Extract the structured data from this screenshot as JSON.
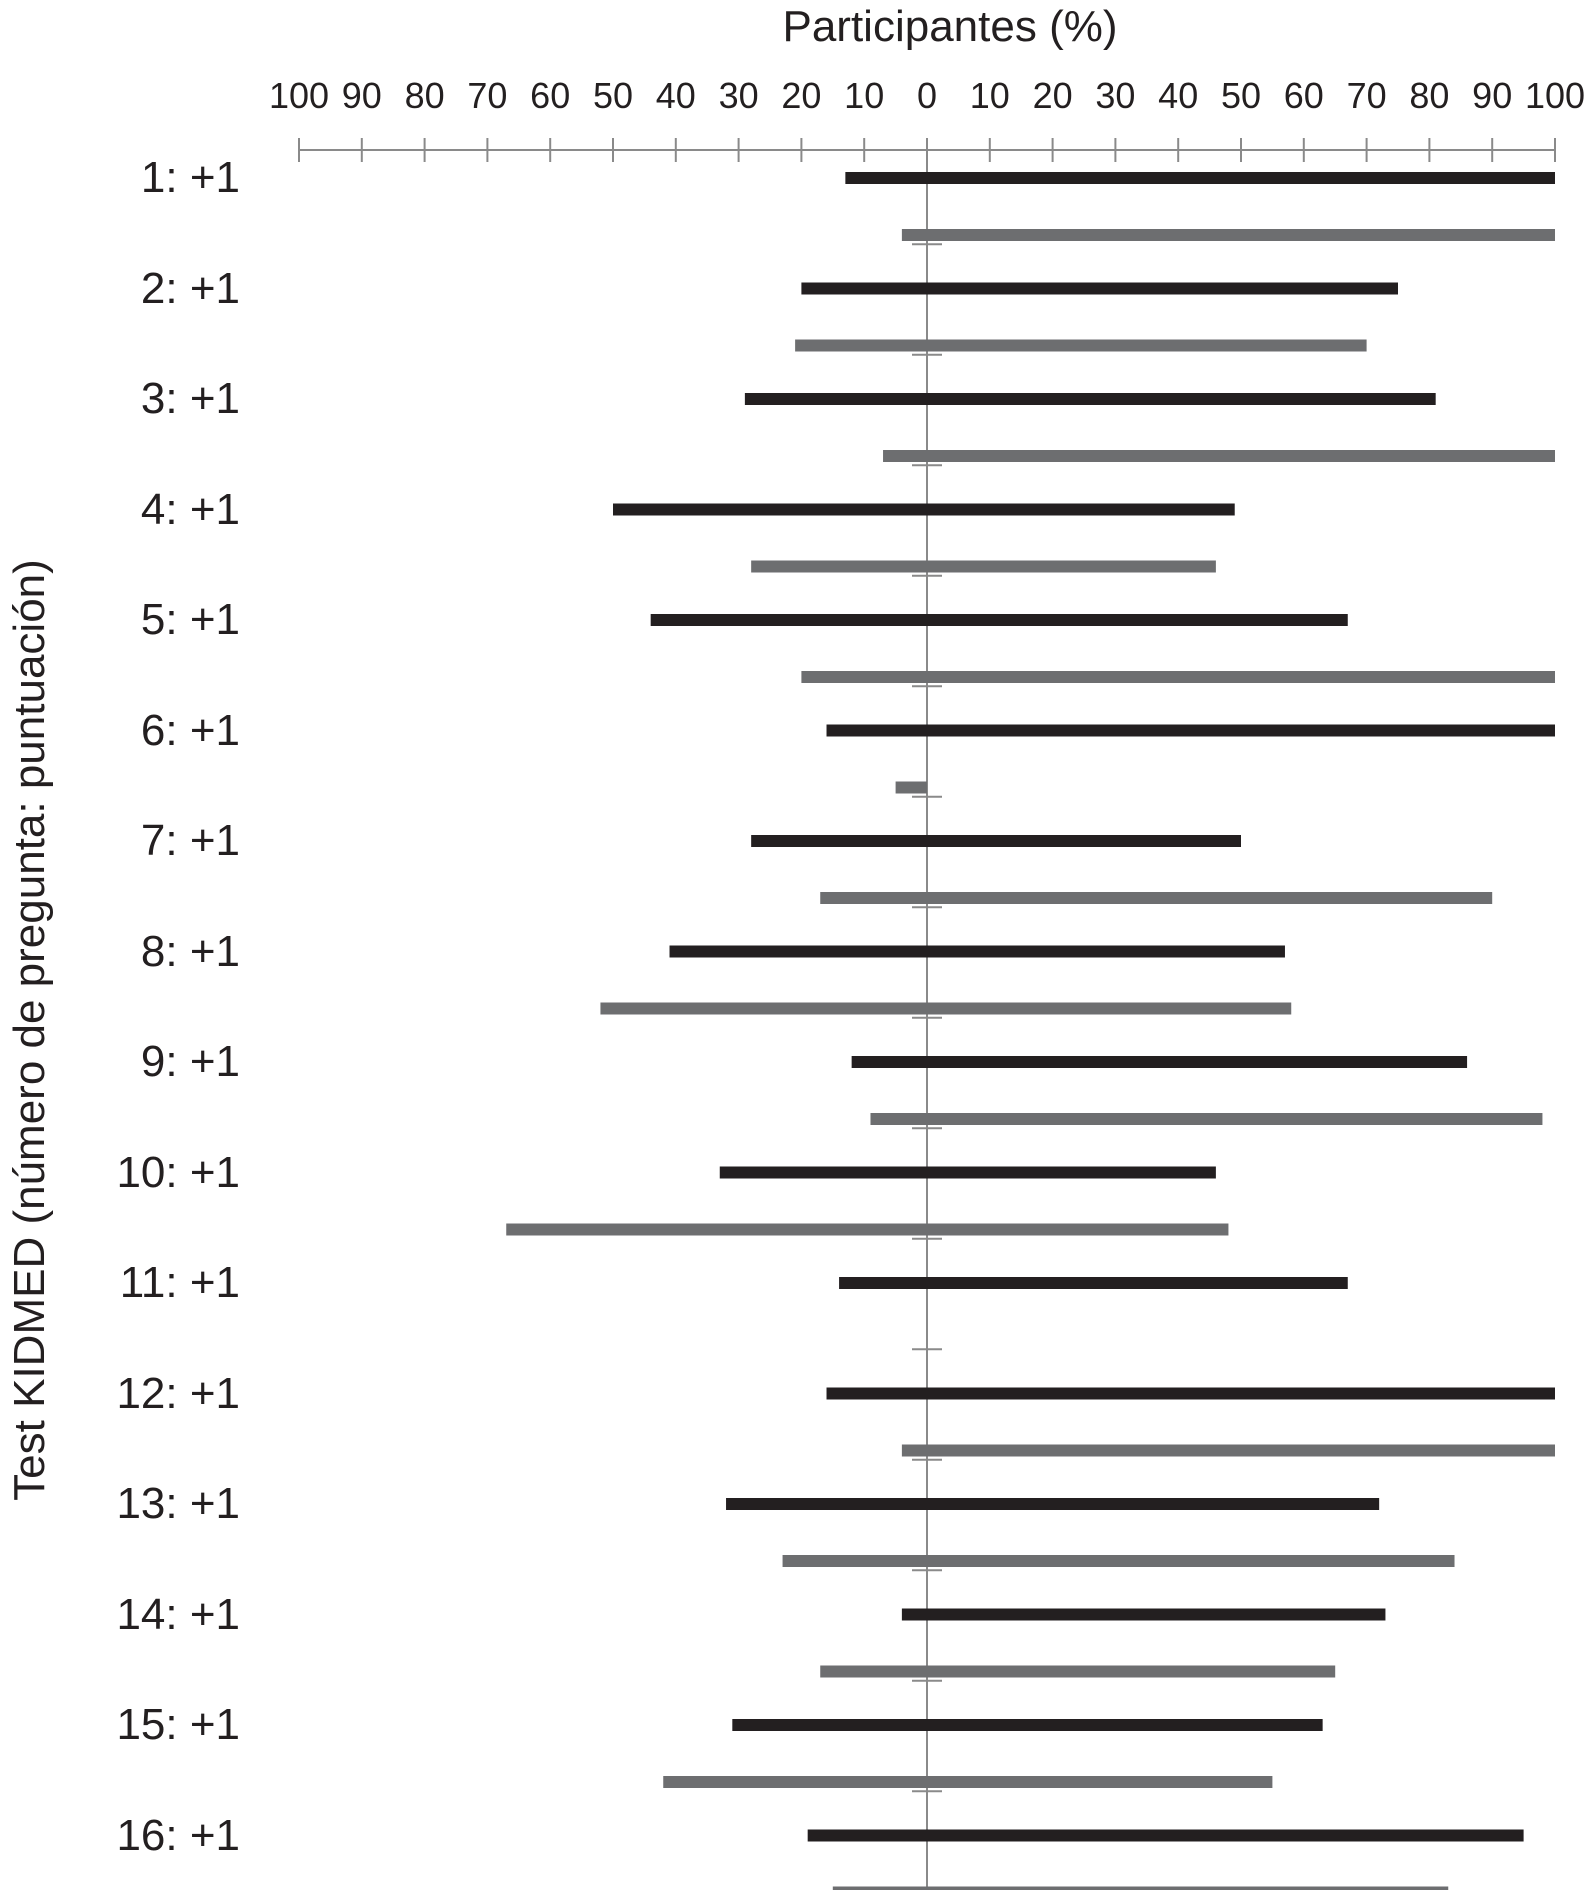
{
  "chart_data": {
    "type": "bar",
    "title": "Participantes (%)",
    "ylabel": "Test KIDMED (número de pregunta: puntuación)",
    "xlim": [
      -100,
      100
    ],
    "x_ticks": [
      100,
      90,
      80,
      70,
      60,
      50,
      40,
      30,
      20,
      10,
      0,
      10,
      20,
      30,
      40,
      50,
      60,
      70,
      80,
      90,
      100
    ],
    "colors": {
      "series_1": "#231f20",
      "series_2": "#6d6e70",
      "axis": "#8a8a8a"
    },
    "categories": [
      "1: +1",
      "2: +1",
      "3: +1",
      "4: +1",
      "5: +1",
      "6: +1",
      "7: +1",
      "8: +1",
      "9: +1",
      "10: +1",
      "11: +1",
      "12: +1",
      "13: +1",
      "14: +1",
      "15: +1",
      "16: +1"
    ],
    "series": [
      {
        "color": "#231f20",
        "values": [
          [
            -13,
            100
          ],
          [
            -20,
            75
          ],
          [
            -29,
            81
          ],
          [
            -50,
            49
          ],
          [
            -44,
            67
          ],
          [
            -16,
            100
          ],
          [
            -28,
            50
          ],
          [
            -41,
            57
          ],
          [
            -12,
            86
          ],
          [
            -33,
            46
          ],
          [
            -14,
            67
          ],
          [
            -16,
            100
          ],
          [
            -32,
            72
          ],
          [
            -4,
            73
          ],
          [
            -31,
            63
          ],
          [
            -19,
            95
          ]
        ]
      },
      {
        "color": "#6d6e70",
        "values": [
          [
            -4,
            100
          ],
          [
            -21,
            70
          ],
          [
            -7,
            100
          ],
          [
            -28,
            46
          ],
          [
            -20,
            100
          ],
          [
            -5,
            0
          ],
          [
            -17,
            90
          ],
          [
            -52,
            58
          ],
          [
            -9,
            98
          ],
          [
            -67,
            48
          ],
          null,
          [
            -4,
            100
          ],
          [
            -23,
            84
          ],
          [
            -17,
            65
          ],
          [
            -42,
            55
          ],
          [
            -15,
            83
          ]
        ]
      }
    ]
  }
}
